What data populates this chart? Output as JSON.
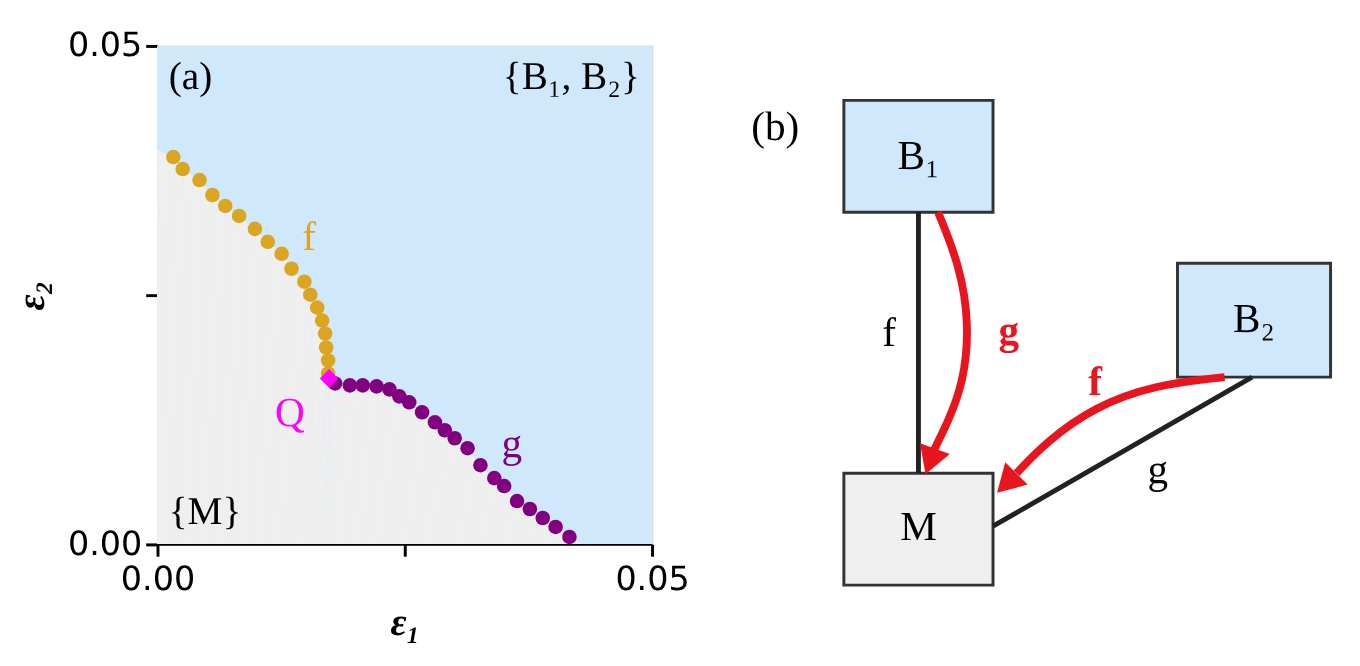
{
  "chart_data": [
    {
      "type": "scatter",
      "xlabel": "ε₁",
      "ylabel": "ε₂",
      "xlim": [
        0,
        0.05
      ],
      "ylim": [
        0,
        0.05
      ],
      "xticks": [
        {
          "value": 0,
          "label": "0.00"
        },
        {
          "value": 0.025,
          "label": null
        },
        0.05
      ],
      "yticks": [
        {
          "value": 0,
          "label": "0.00"
        },
        {
          "value": 0.025,
          "label": null
        },
        0.05
      ],
      "series": [
        {
          "type": "area",
          "color": "#cfe8fc",
          "x": [
            0,
            0.05
          ],
          "values": [
            0.05,
            0.05
          ]
        },
        {
          "type": "area",
          "color": "#efefef",
          "x": [
            0,
            0.00165,
            0.0026,
            0.0043,
            0.0056,
            0.0069,
            0.0083,
            0.0099,
            0.0112,
            0.0126,
            0.0136,
            0.0149,
            0.0155,
            0.0162,
            0.0167,
            0.017,
            0.0171,
            0.0173,
            0.0174,
            0.018,
            0.0195,
            0.0208,
            0.0222,
            0.0235,
            0.0245,
            0.0255,
            0.0268,
            0.0281,
            0.0291,
            0.0301,
            0.0314,
            0.0327,
            0.0341,
            0.0351,
            0.0364,
            0.0377,
            0.039,
            0.0403,
            0.0417,
            0.043
          ],
          "values": [
            0.0395,
            0.0388,
            0.0376,
            0.0365,
            0.035,
            0.0339,
            0.0329,
            0.0316,
            0.0303,
            0.0291,
            0.0276,
            0.0263,
            0.025,
            0.0237,
            0.0224,
            0.0211,
            0.0197,
            0.0184,
            0.0166,
            0.0161,
            0.0159,
            0.0159,
            0.0158,
            0.0155,
            0.0148,
            0.0142,
            0.0132,
            0.0122,
            0.0114,
            0.0106,
            0.0096,
            0.0079,
            0.0066,
            0.0058,
            0.0043,
            0.0035,
            0.0026,
            0.0017,
            0.0007,
            0
          ]
        },
        {
          "type": "scatter",
          "marker": "circle",
          "color": "#daa520",
          "x": [
            0.00165,
            0.0026,
            0.0043,
            0.0056,
            0.0069,
            0.0083,
            0.0099,
            0.0112,
            0.0126,
            0.0136,
            0.0149,
            0.0155,
            0.0162,
            0.0167,
            0.017,
            0.0171,
            0.0173,
            0.0173
          ],
          "values": [
            0.0388,
            0.0376,
            0.0365,
            0.035,
            0.0339,
            0.0329,
            0.0316,
            0.0303,
            0.0291,
            0.0276,
            0.0263,
            0.025,
            0.0237,
            0.0224,
            0.0211,
            0.0197,
            0.0184,
            0.0171
          ]
        },
        {
          "type": "scatter",
          "marker": "circle",
          "color": "#800080",
          "x": [
            0.018,
            0.0195,
            0.0208,
            0.0222,
            0.0235,
            0.0245,
            0.0255,
            0.0268,
            0.0281,
            0.0291,
            0.0301,
            0.0314,
            0.0327,
            0.0341,
            0.0351,
            0.0364,
            0.0377,
            0.039,
            0.0403,
            0.0417
          ],
          "values": [
            0.0161,
            0.0159,
            0.0159,
            0.0158,
            0.0155,
            0.0148,
            0.0142,
            0.0132,
            0.0122,
            0.0114,
            0.0106,
            0.0096,
            0.0079,
            0.0066,
            0.0058,
            0.0043,
            0.0035,
            0.0026,
            0.0017,
            0.0007
          ]
        },
        {
          "type": "scatter",
          "marker": "diamond",
          "color": "#ff00ff",
          "x": [
            0.0174
          ],
          "values": [
            0.0166
          ]
        }
      ],
      "annotations": [
        "(a)",
        "{B₁, B₂}",
        "{M}",
        {
          "text": "f",
          "x": 0.0126,
          "y": 0.0291
        },
        {
          "text": "g",
          "x": 0.0327,
          "y": 0.0079
        },
        {
          "text": "Q",
          "x": 0.0174,
          "y": 0.0166
        }
      ]
    },
    {
      "type": "other",
      "colors": [
        "#cfe8fc",
        "#cfe8fc",
        "#efefef"
      ],
      "annotations": [
        "(b)",
        "B₁",
        "B₂",
        "M",
        "f",
        "g",
        "f",
        "g"
      ]
    }
  ]
}
